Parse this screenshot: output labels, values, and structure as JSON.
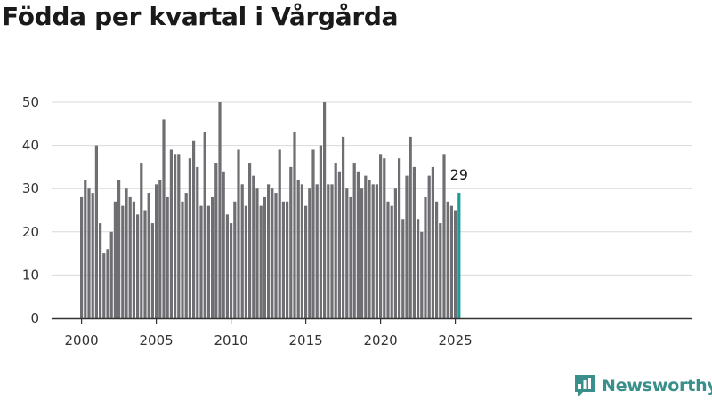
{
  "chart_data": {
    "type": "bar",
    "title": "Födda per kvartal i Vårgårda",
    "xlabel": "",
    "ylabel": "",
    "ylim": [
      0,
      50
    ],
    "yticks": [
      0,
      10,
      20,
      30,
      40,
      50
    ],
    "xticks": [
      "2000",
      "2005",
      "2010",
      "2015",
      "2020",
      "2025"
    ],
    "x_start": "2000 Q1",
    "grid": true,
    "bar_color": "#6e6e73",
    "highlight_color": "#1a9e97",
    "highlight_label": "29",
    "values": [
      28,
      32,
      30,
      29,
      40,
      22,
      15,
      16,
      20,
      27,
      32,
      26,
      30,
      28,
      27,
      24,
      36,
      25,
      29,
      22,
      31,
      32,
      46,
      28,
      39,
      38,
      38,
      27,
      29,
      37,
      41,
      35,
      26,
      43,
      26,
      28,
      36,
      50,
      34,
      24,
      22,
      27,
      39,
      31,
      26,
      36,
      33,
      30,
      26,
      28,
      31,
      30,
      29,
      39,
      27,
      27,
      35,
      43,
      32,
      31,
      26,
      30,
      39,
      31,
      40,
      50,
      31,
      31,
      36,
      34,
      42,
      30,
      28,
      36,
      34,
      30,
      33,
      32,
      31,
      31,
      38,
      37,
      27,
      26,
      30,
      37,
      23,
      33,
      42,
      35,
      23,
      20,
      28,
      33,
      35,
      27,
      22,
      38,
      27,
      26,
      25,
      29
    ]
  },
  "brand": {
    "name": "Newsworthy",
    "icon": "newsworthy-logo-icon"
  }
}
